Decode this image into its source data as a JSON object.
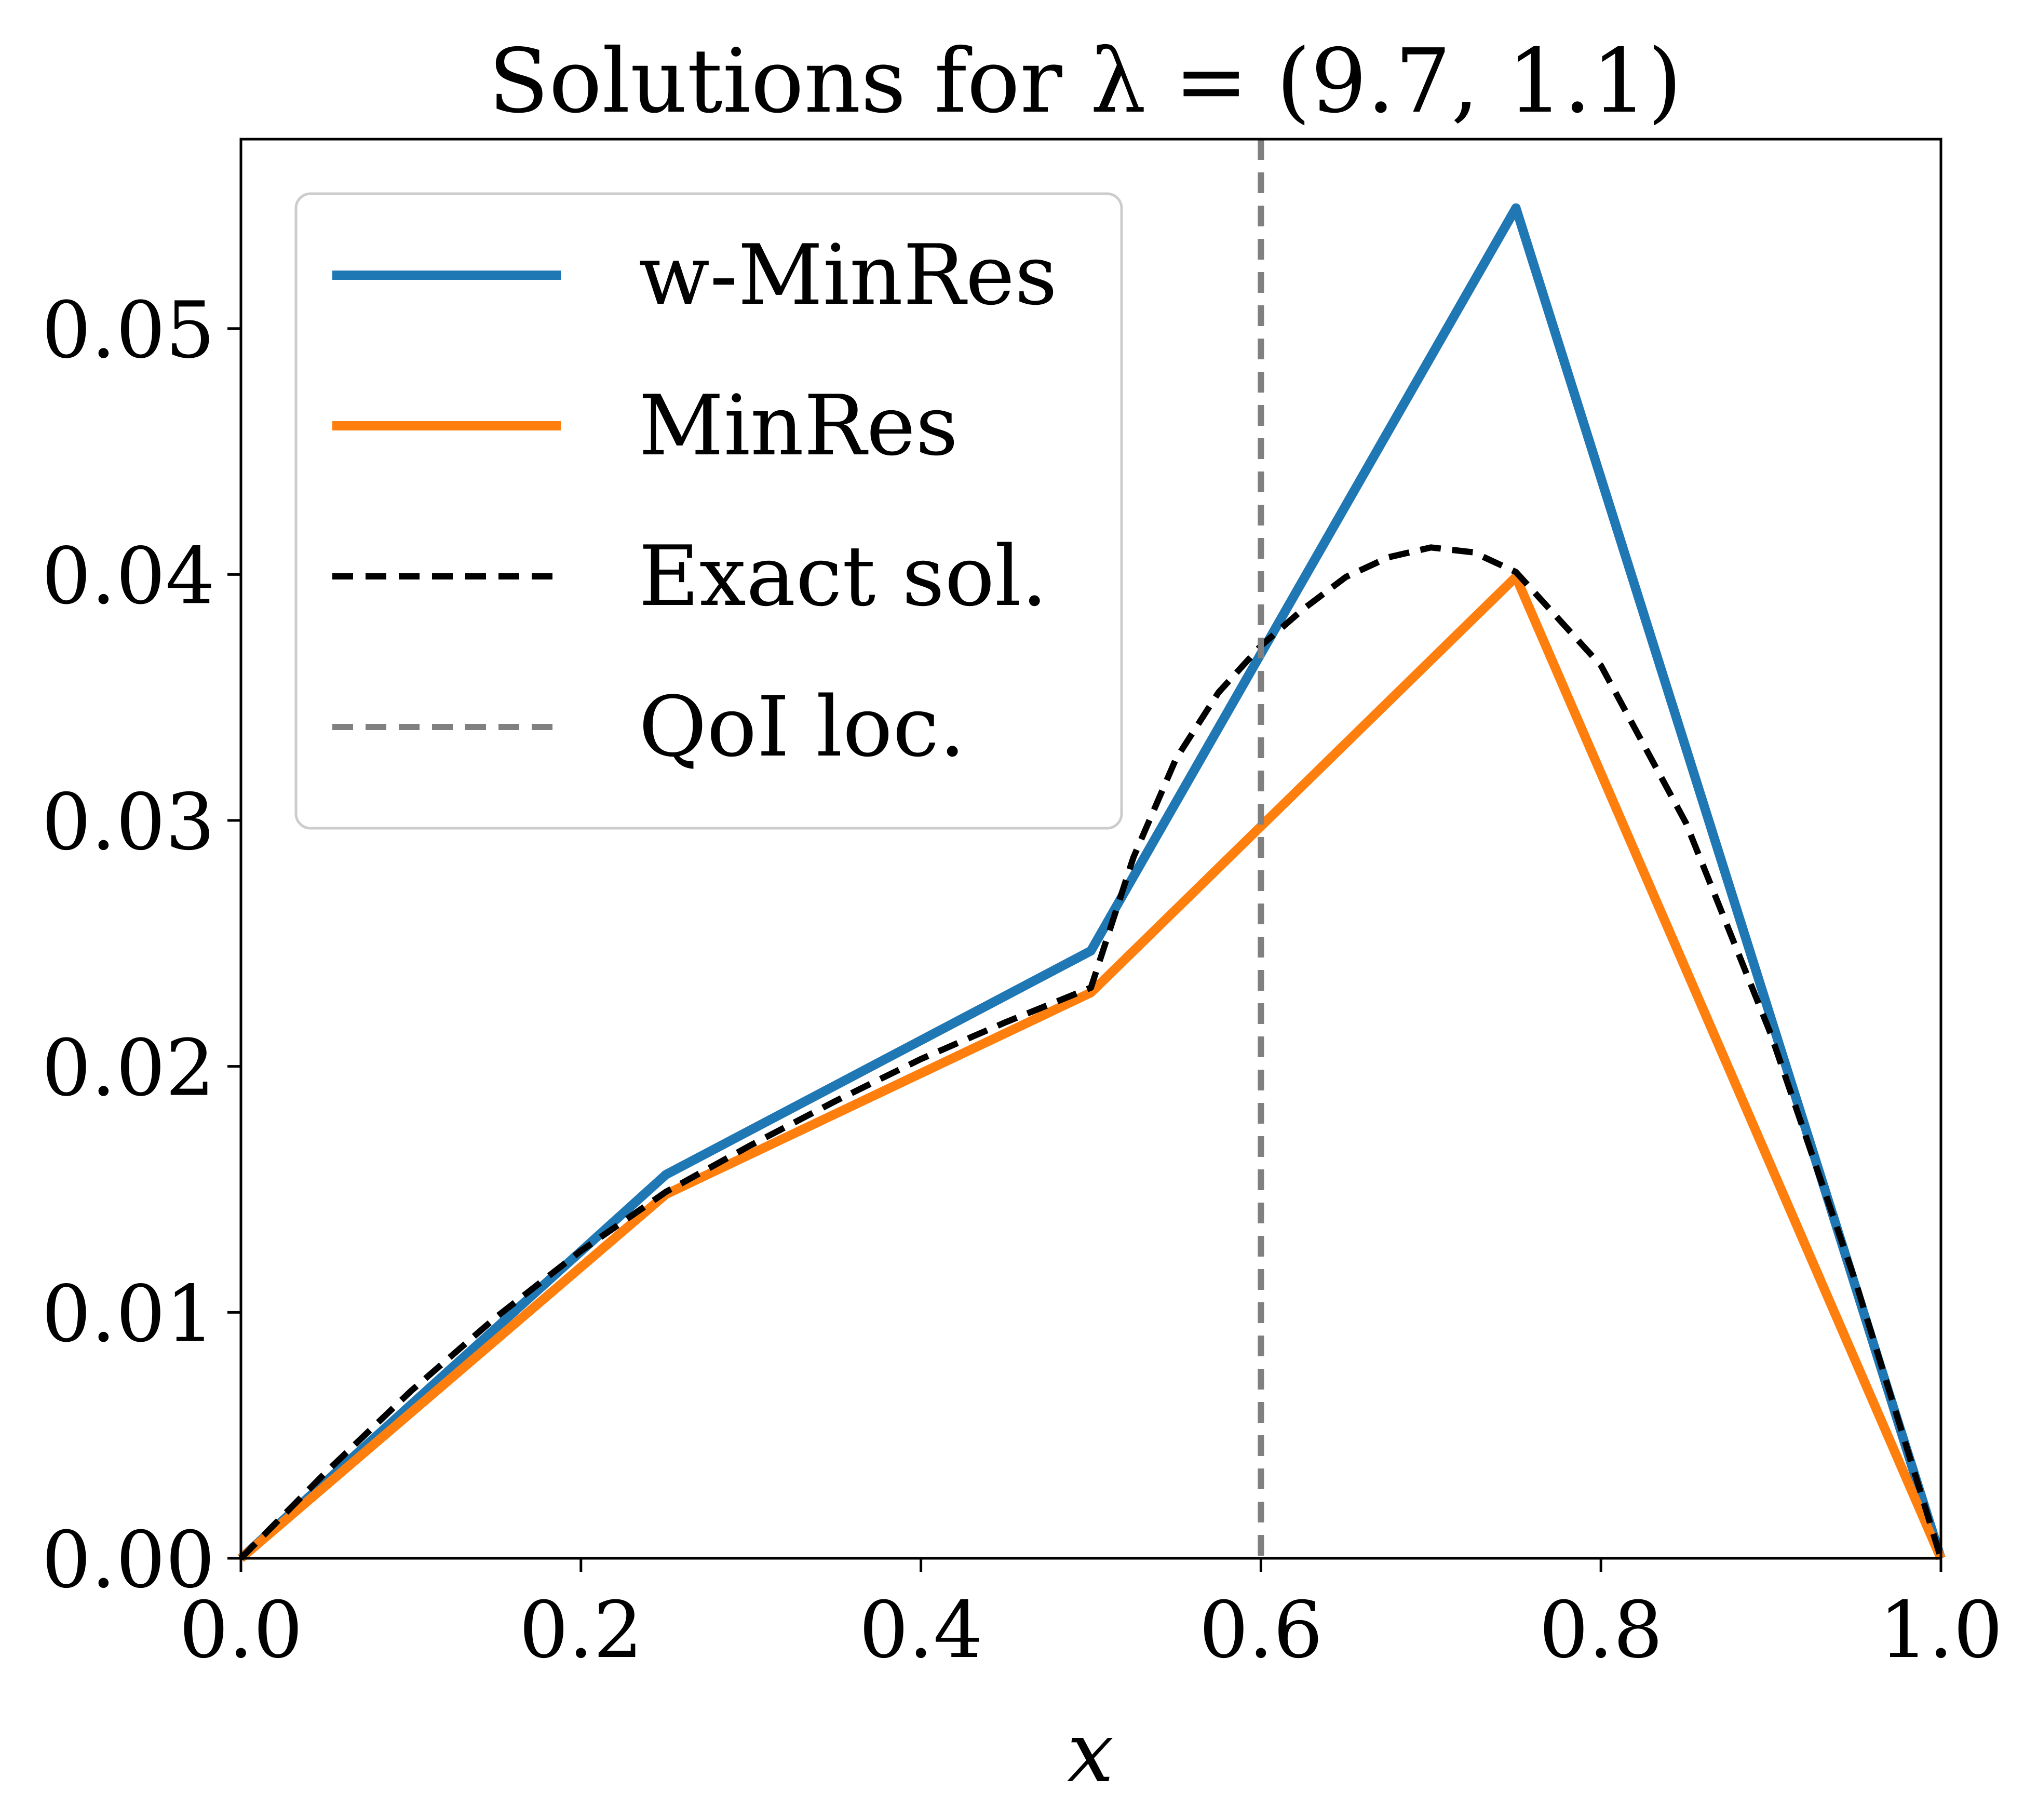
{
  "chart_data": {
    "type": "line",
    "title": "Solutions for λ = (9.7, 1.1)",
    "xlabel": "x",
    "ylabel": "",
    "xlim": [
      0.0,
      1.0
    ],
    "ylim": [
      0.0,
      0.0577
    ],
    "xticks": [
      "0.0",
      "0.2",
      "0.4",
      "0.6",
      "0.8",
      "1.0"
    ],
    "xtick_values": [
      0.0,
      0.2,
      0.4,
      0.6,
      0.8,
      1.0
    ],
    "yticks": [
      "0.00",
      "0.01",
      "0.02",
      "0.03",
      "0.04",
      "0.05"
    ],
    "ytick_values": [
      0.0,
      0.01,
      0.02,
      0.03,
      0.04,
      0.05
    ],
    "grid": false,
    "legend_position": "top-left",
    "series": [
      {
        "name": "w-MinRes",
        "color": "#1f77b4",
        "style": "solid",
        "x": [
          0.0,
          0.25,
          0.5,
          0.75,
          1.0
        ],
        "y": [
          0.0,
          0.0156,
          0.0247,
          0.0549,
          0.0
        ]
      },
      {
        "name": "MinRes",
        "color": "#ff7f0e",
        "style": "solid",
        "x": [
          0.0,
          0.25,
          0.5,
          0.75,
          1.0
        ],
        "y": [
          0.0,
          0.0148,
          0.023,
          0.0399,
          0.0
        ]
      },
      {
        "name": "Exact sol.",
        "color": "#000000",
        "style": "dashed",
        "x": [
          0.0,
          0.05,
          0.1,
          0.15,
          0.2,
          0.25,
          0.3,
          0.35,
          0.4,
          0.45,
          0.5,
          0.525,
          0.55,
          0.575,
          0.6,
          0.625,
          0.65,
          0.675,
          0.7,
          0.725,
          0.75,
          0.8,
          0.85,
          0.9,
          0.95,
          1.0
        ],
        "y": [
          0.0,
          0.0035,
          0.0068,
          0.0098,
          0.0125,
          0.0149,
          0.0168,
          0.0186,
          0.0203,
          0.0218,
          0.0232,
          0.0285,
          0.0325,
          0.0352,
          0.0371,
          0.0386,
          0.0399,
          0.0407,
          0.0411,
          0.0409,
          0.0401,
          0.0363,
          0.0299,
          0.0213,
          0.0112,
          0.0
        ]
      },
      {
        "name": "QoI loc.",
        "color": "#808080",
        "style": "dashed",
        "vline_x": 0.6
      }
    ]
  }
}
